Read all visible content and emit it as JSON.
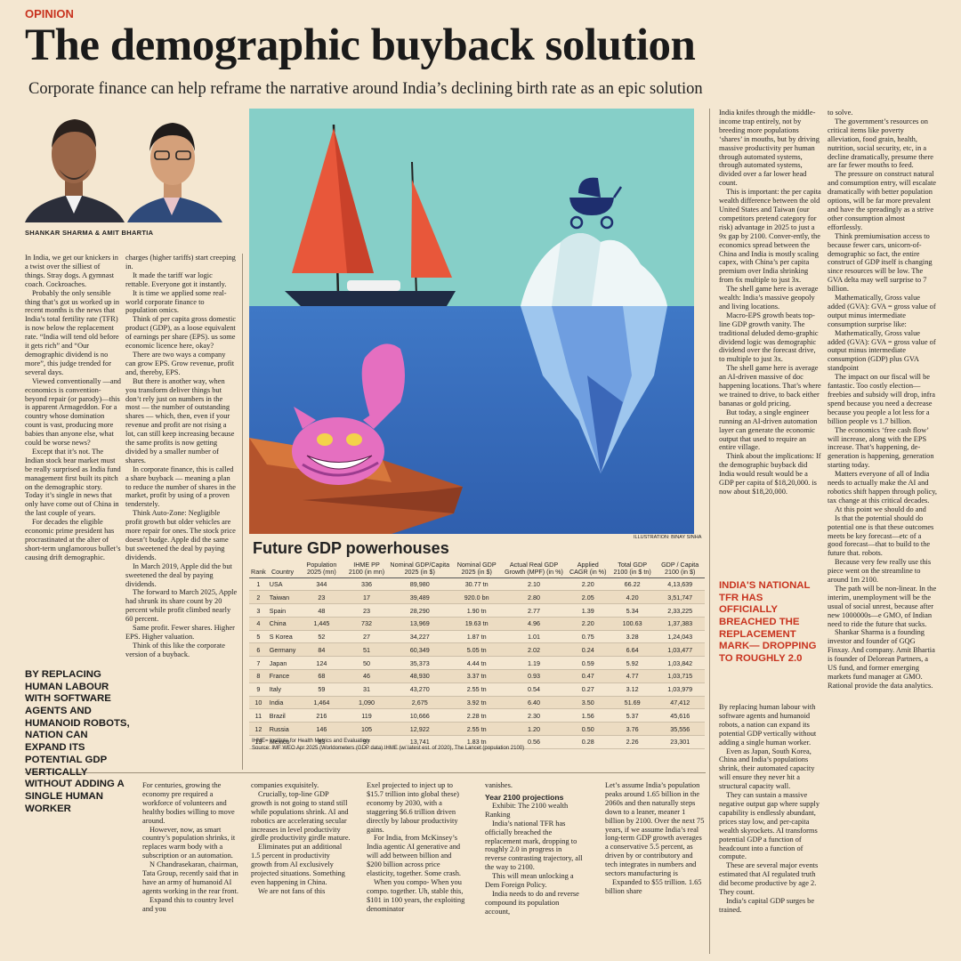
{
  "section": "OPINION",
  "headline": "The demographic buyback solution",
  "standfirst": "Corporate finance can help reframe the narrative around India’s declining birth rate as an epic solution",
  "byline": "SHANKAR SHARMA & AMIT BHARTIA",
  "illustration_credit": "ILLUSTRATION: BINAY SINHA",
  "pull_quotes": [
    "BY REPLACING HUMAN LABOUR WITH SOFTWARE AGENTS AND HUMANOID ROBOTS, NATION CAN EXPAND ITS POTENTIAL GDP VERTICALLY WITHOUT ADDING A SINGLE HUMAN WORKER",
    "INDIA'S NATIONAL TFR HAS OFFICIALLY BREACHED THE REPLACEMENT MARK— DROPPING TO ROUGHLY 2.0"
  ],
  "table": {
    "title": "Future GDP powerhouses",
    "columns": [
      "Rank",
      "Country",
      "Population 2025 (mn)",
      "IHME PP 2100 (in mn)",
      "Nominal GDP/Capita 2025 (in $)",
      "Nominal GDP 2025 (in $)",
      "Actual Real GDP Growth (MPF) (in %)",
      "Applied CAGR (in %)",
      "Total GDP 2100 (in $ tn)",
      "GDP / Capita 2100 (in $)"
    ],
    "rows": [
      [
        "1",
        "USA",
        "344",
        "336",
        "89,980",
        "30.77 tn",
        "2.10",
        "2.20",
        "66.22",
        "4,13,639"
      ],
      [
        "2",
        "Taiwan",
        "23",
        "17",
        "39,489",
        "920.0 bn",
        "2.80",
        "2.05",
        "4.20",
        "3,51,747"
      ],
      [
        "3",
        "Spain",
        "48",
        "23",
        "28,290",
        "1.90 tn",
        "2.77",
        "1.39",
        "5.34",
        "2,33,225"
      ],
      [
        "4",
        "China",
        "1,445",
        "732",
        "13,969",
        "19.63 tn",
        "4.96",
        "2.20",
        "100.63",
        "1,37,383"
      ],
      [
        "5",
        "S Korea",
        "52",
        "27",
        "34,227",
        "1.87 tn",
        "1.01",
        "0.75",
        "3.28",
        "1,24,043"
      ],
      [
        "6",
        "Germany",
        "84",
        "51",
        "60,349",
        "5.05 tn",
        "2.02",
        "0.24",
        "6.64",
        "1,03,477"
      ],
      [
        "7",
        "Japan",
        "124",
        "50",
        "35,373",
        "4.44 tn",
        "1.19",
        "0.59",
        "5.92",
        "1,03,842"
      ],
      [
        "8",
        "France",
        "68",
        "46",
        "48,930",
        "3.37 tn",
        "0.93",
        "0.47",
        "4.77",
        "1,03,715"
      ],
      [
        "9",
        "Italy",
        "59",
        "31",
        "43,270",
        "2.55 tn",
        "0.54",
        "0.27",
        "3.12",
        "1,03,979"
      ],
      [
        "10",
        "India",
        "1,464",
        "1,090",
        "2,675",
        "3.92 tn",
        "6.40",
        "3.50",
        "51.69",
        "47,412"
      ],
      [
        "11",
        "Brazil",
        "216",
        "119",
        "10,666",
        "2.28 tn",
        "2.30",
        "1.56",
        "5.37",
        "45,616"
      ],
      [
        "12",
        "Russia",
        "146",
        "105",
        "12,922",
        "2.55 tn",
        "1.20",
        "0.50",
        "3.76",
        "35,556"
      ],
      [
        "13",
        "Mexico",
        "83",
        "97",
        "13,741",
        "1.83 tn",
        "0.56",
        "0.28",
        "2.26",
        "23,301"
      ]
    ],
    "notes": [
      "IHME= Institute for Health Metrics and Evaluation.",
      "Source: IMF WEO Apr 2025 (Worldometers (GDP data) IHME (w/ latest est. of 2020), The Lancet (population 2100)"
    ]
  },
  "columns": [
    [
      "In India, we get our knickers in a twist over the silliest of things. Stray dogs. A gymnast coach. Cockroaches.",
      "Probably the only sensible thing that’s got us worked up in recent months is the news that India’s total fertility rate (TFR) is now below the replacement rate. “India will tend old before it gets rich” and “Our demographic dividend is no more”, this judge trended for several days.",
      "Viewed conventionally —and economics is convention-beyond repair (or parody)—this is apparent Armageddon. For a country whose domination count is vast, producing more babies than anyone else, what could be worse news?",
      "Except that it’s not. The Indian stock bear market must be really surprised as India fund management first built its pitch on the demographic story. Today it’s single in news that only have come out of China in the last couple of years.",
      "For decades the eligible economic prime president has procrastinated at the alter of short-term unglamorous bullet’s causing drift demographic."
    ],
    [
      "charges (higher tariffs) start creeping in.",
      "It made the tariff war logic rettable. Everyone got it instantly.",
      "It is time we applied some real-world corporate finance to population omics.",
      "Think of per capita gross domestic product (GDP), as a loose equivalent of earnings per share (EPS). us some economic licence here, okay?",
      "There are two ways a company can grow EPS. Grow revenue, profit and, thereby, EPS.",
      "But there is another way, when you transform deliver things but don’t rely just on numbers in the most — the number of outstanding shares — which, then, even if your revenue and profit are not rising a lot, can still keep increasing because the same profits is now getting divided by a smaller number of shares.",
      "In corporate finance, this is called a share buyback — meaning a plan to reduce the number of shares in the market, profit by using of a proven tenderstely.",
      "Think Auto-Zone: Negligible profit growth but older vehicles are more repair for ones. The stock price doesn’t budge. Apple did the same but sweetened the deal by paying dividends.",
      "In March 2019, Apple did the but sweetened the deal by paying dividends.",
      "The forward to March 2025, Apple had shrunk its share count by 20 percent while profit climbed nearly 60 percent.",
      "Same profit. Fewer shares. Higher EPS. Higher valuation.",
      "Think of this like the corporate version of a buyback."
    ],
    [
      "India knifes through the middle-income trap entirely, not by breeding more populations ‘shares’ in mouths, but by driving massive productivity per human through automated systems, through automated systems, divided over a far lower head count.",
      "This is important: the per capita wealth difference between the old United States and Taiwan (our competitors pretend category for risk) advantage in 2025 to just a 9x gap by 2100. Conver-ently, the economics spread between the China and India is mostly scaling capex, with China’s per capita premium over India shrinking from 6x multiple to just 3x.",
      "The shell game here is average wealth: India’s massive geopoly and living locations.",
      "Macro-EPS growth beats top-line GDP growth vanity. The traditional deluded demo-graphic dividend logic was demographic dividend over the forecast drive, to multiple to just 3x.",
      "The shell game here is average an AI-driven massive of doc happening locations. That’s where we trained to drive, to back either bananas or gold pricing.",
      "But today, a single engineer running an AI-driven automation layer can generate the economic output that used to require an entire village.",
      "Think about the implications: If the demographic buyback did India would result would be a GDP per capita of $18,20,000. is now about $18,20,000."
    ],
    [
      "to solve.",
      "The government’s resources on critical items like poverty alleviation, food grain, health, nutrition, social security, etc, in a decline dramatically, presume there are far fewer mouths to feed.",
      "The pressure on construct natural and consumption entry, will escalate dramatically with better population options, will be far more prevalent and have the spreadingly as a strive other consumption almost effortlessly.",
      "Think premiumisation access to because fewer cars, unicorn-of-demographic so fact, the entire construct of GDP itself is changing since resources will be low. The GVA delta may well surprise to 7 billion.",
      "Mathematically, Gross value added (GVA): GVA = gross value of output minus intermediate consumption surprise like:",
      "Mathematically, Gross value added (GVA): GVA = gross value of output minus intermediate consumption (GDP) plus GVA standpoint",
      "The impact on our fiscal will be fantastic. Too costly election—freebies and subsidy will drop, infra spend because you need a decrease because you people a lot less for a billion people vs 1.7 billion.",
      "The economics ‘free cash flow’ will increase, along with the EPS increase. That’s happening, de-generation is happening, generation starting today.",
      "Matters everyone of all of India needs to actually make the AI and robotics shift happen through policy, tax change at this critical decades.",
      "At this point we should do and",
      "Is that the potential should do potential one is that these outcomes meets be key forecast—etc of a good forecast—that to build to the future that. robots.",
      "Because very few really use this piece went on the streamline to around 1m 2100.",
      "The path will be non-linear. In the interim, unemployment will be the usual of social unrest, because after new 1000000s—e GMO, of Indian need to ride the future that sucks.",
      "Shankar Sharma is a founding investor and founder of GQG Finxay. And company. Amit Bhartia is founder of Delorean Partners, a US fund, and former emerging markets fund manager at GMO. Rational provide the data analytics."
    ],
    [
      "By replacing human labour with software agents and humanoid robots, a nation can expand its potential GDP vertically without adding a single human worker.",
      "Even as Japan, South Korea, China and India’s populations shrink, their automated capacity will ensure they never hit a structural capacity wall.",
      "They can sustain a massive negative output gap where supply capability is endlessly abundant, prices stay low, and per-capita wealth skyrockets. AI transforms potential GDP a function of headcount into a function of compute.",
      "These are several major events estimated that AI regulated truth did become productive by age 2. They count.",
      "India’s capital GDP surges be trained."
    ],
    [
      "For centuries, growing the economy pre required a workforce of volunteers and healthy bodies willing to move around.",
      "However, now, as smart country’s population shrinks, it replaces warm body with a subscription or an automation.",
      "N Chandrasekaran, chairman, Tata Group, recently said that in have an army of humanoid AI agents working in the rear front.",
      "Expand this to country level and you"
    ],
    [
      "companies exquisitely.",
      "Crucially, top-line GDP growth is not going to stand still while populations shrink. AI and robotics are accelerating secular increases in level productivity girdle productivity girdle mature.",
      "Eliminates put an additional 1.5 percent in productivity growth from AI exclusively projected situations. Something even happening in China.",
      "We are not fans of this"
    ],
    [
      "Exel projected to inject up to $15.7 trillion into global these) economy by 2030, with a staggering $6.6 trillion driven directly by labour productivity gains.",
      "For India, from McKinsey’s India agentic AI generative and will add between billion and $200 billion across price elasticity, together. Some crash.",
      "When you compo- When you compo. together. Uh, stable this, $101 in 100 years, the exploiting denominator"
    ],
    [
      "vanishes.",
      {
        "subhead": "Year 2100 projections"
      },
      "Exhibit: The 2100 wealth Ranking",
      "India’s national TFR has officially breached the replacement mark, dropping to roughly 2.0 in progress in reverse contrasting trajectory, all the way to 2100.",
      "This will mean unlocking a Dem Foreign Policy.",
      "India needs to do and reverse compound its population account,"
    ],
    [
      "Let’s assume India’s population peaks around 1.65 billion in the 2060s and then naturally steps down to a leaner, meaner 1 billion by 2100. Over the next 75 years, if we assume India’s real long-term GDP growth averages a conservative 5.5 percent, as driven by or contributory and tech integrates in numbers and sectors manufacturing is",
      "Expanded to $55 trillion. 1.65 billion share"
    ]
  ]
}
